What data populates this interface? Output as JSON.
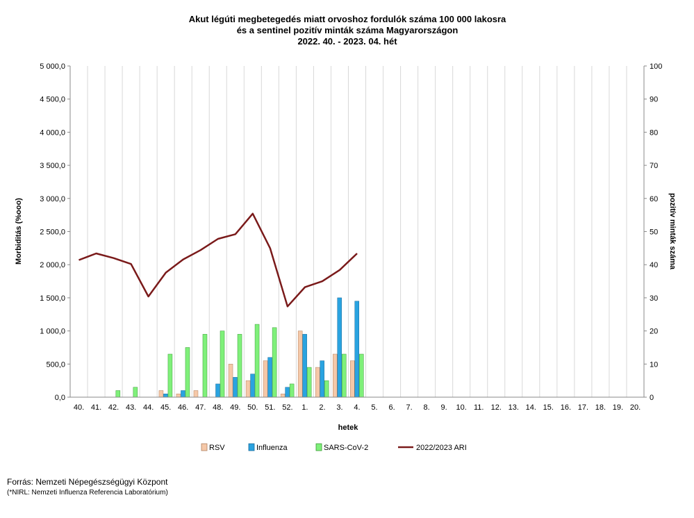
{
  "chart_data": {
    "type": "bar+line",
    "title_lines": [
      "Akut légúti megbetegedés miatt orvoshoz fordulók száma 100 000 lakosra",
      "és a sentinel pozitív minták száma Magyarországon",
      "2022. 40. - 2023. 04. hét"
    ],
    "xlabel": "hetek",
    "ylabel_left": "Morbiditás (%ooo)",
    "ylabel_right": "pozitív minták száma",
    "left_axis": {
      "min": 0,
      "max": 5000,
      "step": 500,
      "tick_labels": [
        "0,0",
        "500,0",
        "1 000,0",
        "1 500,0",
        "2 000,0",
        "2 500,0",
        "3 000,0",
        "3 500,0",
        "4 000,0",
        "4 500,0",
        "5 000,0"
      ]
    },
    "right_axis": {
      "min": 0,
      "max": 100,
      "step": 10,
      "tick_labels": [
        "0",
        "10",
        "20",
        "30",
        "40",
        "50",
        "60",
        "70",
        "80",
        "90",
        "100"
      ]
    },
    "categories": [
      "40.",
      "41.",
      "42.",
      "43.",
      "44.",
      "45.",
      "46.",
      "47.",
      "48.",
      "49.",
      "50.",
      "51.",
      "52.",
      "1.",
      "2.",
      "3.",
      "4.",
      "5.",
      "6.",
      "7.",
      "8.",
      "9.",
      "10.",
      "11.",
      "12.",
      "13.",
      "14.",
      "15.",
      "16.",
      "17.",
      "18.",
      "19.",
      "20."
    ],
    "series": [
      {
        "name": "RSV",
        "kind": "bar",
        "color": "#f5c8a8",
        "stroke": "#b08060",
        "axis": "right",
        "values": [
          0,
          0,
          0,
          0,
          0,
          2,
          1,
          2,
          0,
          10,
          5,
          11,
          1,
          20,
          9,
          13,
          11,
          null,
          null,
          null,
          null,
          null,
          null,
          null,
          null,
          null,
          null,
          null,
          null,
          null,
          null,
          null,
          null
        ]
      },
      {
        "name": "Influenza",
        "kind": "bar",
        "color": "#2aa3e0",
        "stroke": "#1a6a9a",
        "axis": "right",
        "values": [
          0,
          0,
          0,
          0,
          0,
          1,
          2,
          0,
          4,
          6,
          7,
          12,
          3,
          19,
          11,
          30,
          29,
          null,
          null,
          null,
          null,
          null,
          null,
          null,
          null,
          null,
          null,
          null,
          null,
          null,
          null,
          null,
          null
        ]
      },
      {
        "name": "SARS-CoV-2",
        "kind": "bar",
        "color": "#7ff07a",
        "stroke": "#3a9a36",
        "axis": "right",
        "values": [
          0,
          0,
          2,
          3,
          0,
          13,
          15,
          19,
          20,
          19,
          22,
          21,
          4,
          9,
          5,
          13,
          13,
          null,
          null,
          null,
          null,
          null,
          null,
          null,
          null,
          null,
          null,
          null,
          null,
          null,
          null,
          null,
          null
        ]
      },
      {
        "name": "2022/2023 ARI",
        "kind": "line",
        "color": "#7a1a1a",
        "axis": "left",
        "values": [
          2070,
          2170,
          2100,
          2010,
          1520,
          1880,
          2080,
          2220,
          2390,
          2460,
          2770,
          2250,
          1370,
          1660,
          1750,
          1920,
          2170,
          null,
          null,
          null,
          null,
          null,
          null,
          null,
          null,
          null,
          null,
          null,
          null,
          null,
          null,
          null,
          null
        ]
      }
    ],
    "legend": {
      "placement": "bottom",
      "items": [
        "RSV",
        "Influenza",
        "SARS-CoV-2",
        "2022/2023 ARI"
      ]
    },
    "grid": {
      "vertical": true,
      "horizontal": false
    }
  },
  "footer": {
    "source": "Forrás: Nemzeti Népegészségügyi Központ",
    "note": "(*NIRL: Nemzeti Influenza Referencia Laboratórium)"
  }
}
